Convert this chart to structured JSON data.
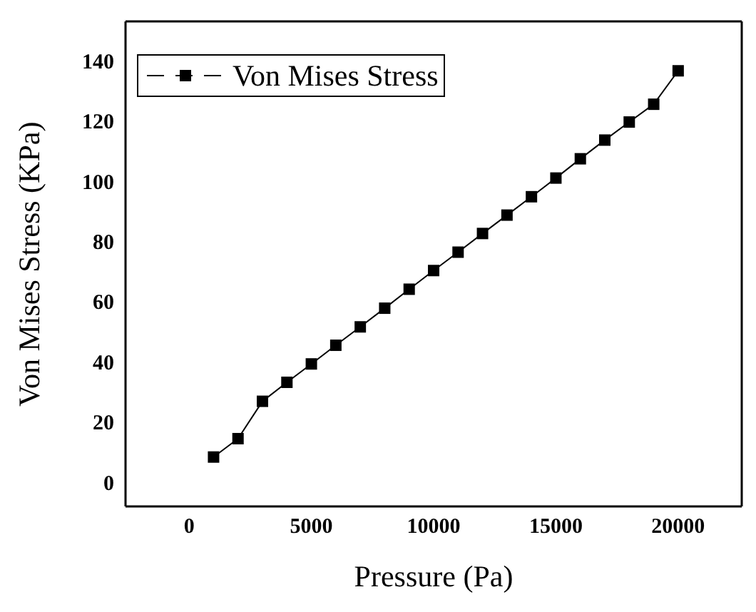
{
  "chart_data": {
    "type": "line",
    "xlabel": "Pressure (Pa)",
    "ylabel": "Von Mises Stress (KPa)",
    "x": [
      1000,
      2000,
      3000,
      4000,
      5000,
      6000,
      7000,
      8000,
      9000,
      10000,
      11000,
      12000,
      13000,
      14000,
      15000,
      16000,
      17000,
      18000,
      19000,
      20000
    ],
    "series": [
      {
        "name": "Von Mises Stress",
        "color": "#000000",
        "values": [
          8.4,
          14.5,
          26.9,
          33.2,
          39.3,
          45.5,
          51.6,
          57.8,
          64.1,
          70.3,
          76.4,
          82.6,
          88.7,
          94.8,
          101,
          107.4,
          113.6,
          119.6,
          125.5,
          136.6
        ]
      }
    ],
    "xlim": [
      -2600,
      22600
    ],
    "xticks": [
      0,
      5000,
      10000,
      15000,
      20000
    ],
    "ylim": [
      -8,
      153
    ],
    "yticks": [
      0,
      20,
      40,
      60,
      80,
      100,
      120,
      140
    ],
    "marker": "square",
    "line_style": "solid",
    "legend": "top left",
    "grid": false
  }
}
